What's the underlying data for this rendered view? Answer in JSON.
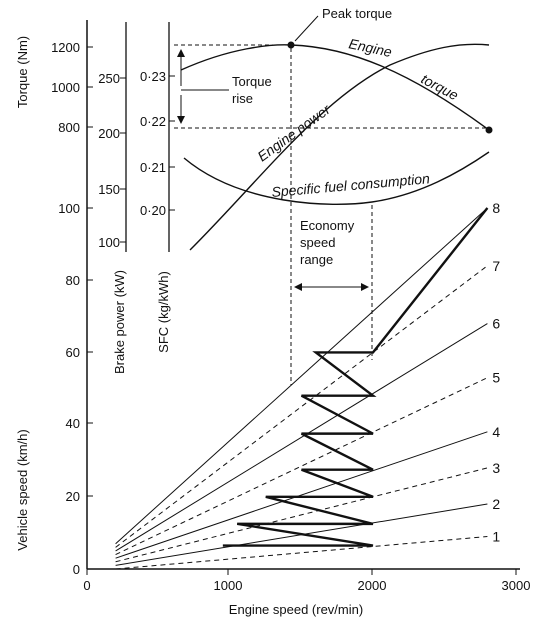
{
  "figure": {
    "x_axis": {
      "label": "Engine speed (rev/min)",
      "ticks": [
        "0",
        "1000",
        "2000",
        "3000"
      ]
    },
    "vehicle_axis": {
      "label": "Vehicle speed (km/h)",
      "ticks": [
        "0",
        "20",
        "40",
        "60",
        "80",
        "100"
      ]
    },
    "torque_axis": {
      "label": "Torque (Nm)",
      "ticks": [
        "800",
        "1000",
        "1200"
      ]
    },
    "power_axis": {
      "label": "Brake power (kW)",
      "ticks": [
        "100",
        "150",
        "200",
        "250"
      ]
    },
    "sfc_axis": {
      "label": "SFC (kg/kWh)",
      "ticks": [
        "0·20",
        "0·21",
        "0·22",
        "0·23"
      ]
    },
    "annotations": {
      "peak_torque": "Peak torque",
      "torque_rise_1": "Torque",
      "torque_rise_2": "rise",
      "engine": "Engine",
      "torque": "torque",
      "engine_power": "Engine power",
      "sfc": "Specific fuel consumption",
      "economy_1": "Economy",
      "economy_2": "speed",
      "economy_3": "range"
    },
    "gear_labels": [
      "1",
      "2",
      "3",
      "4",
      "5",
      "6",
      "7",
      "8"
    ],
    "colors": {
      "ink": "#111111",
      "paper": "#ffffff"
    }
  },
  "chart_data": {
    "type": "line",
    "xlabel": "Engine speed (rev/min)",
    "ylabel": "Vehicle speed (km/h)",
    "xlim": [
      0,
      3000
    ],
    "ylim": [
      0,
      100
    ],
    "gear_ratio_lines": [
      {
        "gear": "1",
        "points": [
          [
            200,
            0
          ],
          [
            2800,
            9
          ]
        ]
      },
      {
        "gear": "2",
        "points": [
          [
            200,
            1
          ],
          [
            2800,
            18
          ]
        ]
      },
      {
        "gear": "3",
        "points": [
          [
            200,
            2
          ],
          [
            2800,
            28
          ]
        ]
      },
      {
        "gear": "4",
        "points": [
          [
            200,
            3
          ],
          [
            2800,
            38
          ]
        ]
      },
      {
        "gear": "5",
        "points": [
          [
            200,
            4
          ],
          [
            2800,
            53
          ]
        ]
      },
      {
        "gear": "6",
        "points": [
          [
            200,
            5
          ],
          [
            2800,
            68
          ]
        ]
      },
      {
        "gear": "7",
        "points": [
          [
            200,
            6
          ],
          [
            2800,
            84
          ]
        ]
      },
      {
        "gear": "8",
        "points": [
          [
            200,
            7
          ],
          [
            2800,
            100
          ]
        ]
      }
    ],
    "shift_pattern": [
      [
        950,
        6.5
      ],
      [
        2000,
        6.5
      ],
      [
        1050,
        12.5
      ],
      [
        2000,
        12.5
      ],
      [
        1250,
        20
      ],
      [
        2000,
        20
      ],
      [
        1500,
        27.5
      ],
      [
        2000,
        27.5
      ],
      [
        1500,
        37.5
      ],
      [
        2000,
        37.5
      ],
      [
        1500,
        48
      ],
      [
        2000,
        48
      ],
      [
        1600,
        60
      ],
      [
        2000,
        60
      ],
      [
        2800,
        100
      ]
    ],
    "torque_curve": {
      "ylim": [
        700,
        1300
      ],
      "points": [
        [
          650,
          1050
        ],
        [
          1000,
          1150
        ],
        [
          1450,
          1200
        ],
        [
          2000,
          1120
        ],
        [
          2450,
          950
        ],
        [
          2800,
          800
        ]
      ],
      "peak": [
        1450,
        1200
      ]
    },
    "power_curve": {
      "ylim": [
        100,
        280
      ],
      "points": [
        [
          650,
          95
        ],
        [
          1100,
          140
        ],
        [
          1500,
          190
        ],
        [
          1900,
          235
        ],
        [
          2350,
          262
        ],
        [
          2800,
          265
        ]
      ]
    },
    "sfc_curve": {
      "ylim": [
        0.195,
        0.24
      ],
      "points": [
        [
          650,
          0.215
        ],
        [
          1000,
          0.207
        ],
        [
          1500,
          0.2005
        ],
        [
          2000,
          0.2015
        ],
        [
          2450,
          0.206
        ],
        [
          2800,
          0.213
        ]
      ]
    },
    "economy_speed_range": [
      1500,
      2000
    ]
  }
}
